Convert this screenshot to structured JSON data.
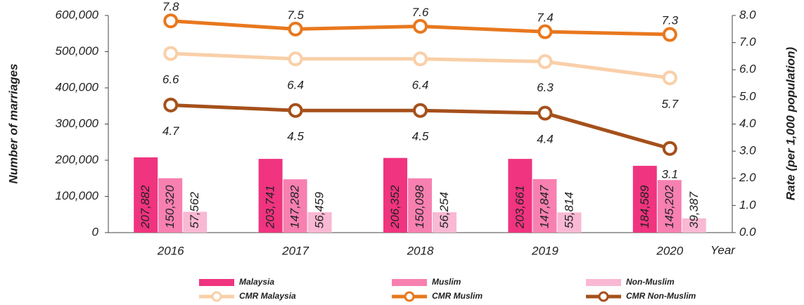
{
  "chart_data": {
    "type": "bar-line",
    "categories": [
      "2016",
      "2017",
      "2018",
      "2019",
      "2020"
    ],
    "x_label": "Year",
    "y_label": "Number of marriages",
    "y2_label": "Rate (per 1,000 population)",
    "ylim": [
      0,
      600000
    ],
    "yticks": [
      0,
      {
        "value": 100000,
        "label": "100,000"
      },
      {
        "value": 200000,
        "label": "200,000"
      },
      {
        "value": 300000,
        "label": "300,000"
      },
      {
        "value": 400000,
        "label": "400,000"
      },
      {
        "value": 500000,
        "label": "500,000"
      },
      {
        "value": 600000,
        "label": "600,000"
      }
    ],
    "y2lim": [
      0,
      8
    ],
    "y2ticks": [
      {
        "value": 0,
        "label": "0.0"
      },
      {
        "value": 1,
        "label": "1.0"
      },
      {
        "value": 2,
        "label": "2.0"
      },
      {
        "value": 3,
        "label": "3.0"
      },
      {
        "value": 4,
        "label": "4.0"
      },
      {
        "value": 5,
        "label": "5.0"
      },
      {
        "value": 6,
        "label": "6.0"
      },
      {
        "value": 7,
        "label": "7.0"
      },
      {
        "value": 8,
        "label": "8.0"
      }
    ],
    "series": [
      {
        "name": "Malaysia",
        "type": "bar",
        "color": "#f0347f",
        "values": [
          207882,
          203741,
          206352,
          203661,
          184589
        ],
        "value_labels": [
          "207,882",
          "203,741",
          "206,352",
          "203,661",
          "184,589"
        ]
      },
      {
        "name": "Muslim",
        "type": "bar",
        "color": "#f780b1",
        "values": [
          150320,
          147282,
          150098,
          147847,
          145202
        ],
        "value_labels": [
          "150,320",
          "147,282",
          "150,098",
          "147,847",
          "145,202"
        ]
      },
      {
        "name": "Non-Muslim",
        "type": "bar",
        "color": "#f9b8d3",
        "values": [
          57562,
          56459,
          56254,
          55814,
          39387
        ],
        "value_labels": [
          "57,562",
          "56,459",
          "56,254",
          "55,814",
          "39,387"
        ]
      },
      {
        "name": "CMR Malaysia",
        "type": "line",
        "axis": "y2",
        "color": "#f9cfa8",
        "values": [
          6.6,
          6.4,
          6.4,
          6.3,
          5.7
        ],
        "label_position": "below"
      },
      {
        "name": "CMR Muslim",
        "type": "line",
        "axis": "y2",
        "color": "#e8781e",
        "values": [
          7.8,
          7.5,
          7.6,
          7.4,
          7.3
        ],
        "label_position": "above"
      },
      {
        "name": "CMR Non-Muslim",
        "type": "line",
        "axis": "y2",
        "color": "#a5501b",
        "values": [
          4.7,
          4.5,
          4.5,
          4.4,
          3.1
        ],
        "label_position": "below"
      }
    ]
  }
}
